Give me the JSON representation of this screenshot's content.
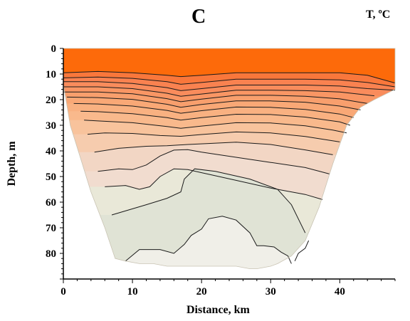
{
  "chart_data": {
    "type": "heatmap",
    "title": "C",
    "unit_label": "T, ºC",
    "xlabel": "Distance, km",
    "ylabel": "Depth, m",
    "xlim": [
      0,
      48
    ],
    "ylim": [
      0,
      90
    ],
    "y_inverted": true,
    "x_ticks": [
      0,
      10,
      20,
      30,
      40
    ],
    "y_ticks": [
      0,
      10,
      20,
      30,
      40,
      50,
      60,
      70,
      80
    ],
    "colors": {
      "surface_mixed_layer": "#fd6a0a",
      "deep_water": "#f7f5ee",
      "contour_line": "#1a1a1a"
    },
    "section_boundary": {
      "x": [
        0,
        48,
        48,
        45,
        43,
        41,
        39,
        37,
        35,
        33,
        31,
        30,
        28,
        27,
        25,
        23,
        21,
        19,
        17,
        15,
        13,
        11,
        9,
        7.5,
        6,
        4,
        2.5,
        1,
        0
      ],
      "depth": [
        0,
        0,
        16,
        20,
        23,
        30,
        45,
        62,
        75,
        81,
        84,
        85,
        86,
        86,
        85,
        85,
        85,
        85,
        85,
        85,
        84,
        84,
        83,
        82,
        70,
        56,
        43,
        30,
        14
      ]
    },
    "thermocline_contours": [
      {
        "x": [
          0,
          5,
          10,
          15,
          17,
          20,
          25,
          30,
          35,
          40,
          44,
          48
        ],
        "depth": [
          9.5,
          9,
          9.5,
          10.5,
          11,
          10.5,
          9.5,
          9.5,
          9.5,
          9.5,
          10.5,
          13.5
        ]
      },
      {
        "x": [
          0,
          5,
          10,
          15,
          17,
          20,
          25,
          30,
          35,
          40,
          44,
          48
        ],
        "depth": [
          11.5,
          11.2,
          11.7,
          13,
          14,
          13.3,
          12,
          12,
          12,
          12.3,
          13.3,
          15
        ]
      },
      {
        "x": [
          0,
          5,
          10,
          15,
          17,
          20,
          25,
          30,
          35,
          40,
          44,
          48
        ],
        "depth": [
          13,
          13,
          13.7,
          15.3,
          16.5,
          15.7,
          14.3,
          14.3,
          14.3,
          14.7,
          15.7,
          16.3
        ]
      },
      {
        "x": [
          0,
          5,
          10,
          15,
          17,
          20,
          25,
          30,
          35,
          40,
          45
        ],
        "depth": [
          15,
          15,
          15.7,
          17.5,
          18.7,
          17.8,
          16.3,
          16.3,
          16.5,
          17,
          18.5
        ]
      },
      {
        "x": [
          0,
          5,
          10,
          15,
          17,
          20,
          25,
          30,
          35,
          40,
          44
        ],
        "depth": [
          17,
          17,
          17.7,
          19.6,
          20.8,
          19.8,
          18.3,
          18.3,
          18.7,
          19.7,
          21.5
        ]
      },
      {
        "x": [
          0.5,
          5,
          10,
          15,
          17,
          20,
          25,
          30,
          35,
          40,
          43
        ],
        "depth": [
          19,
          19.2,
          19.9,
          21.8,
          23,
          21.9,
          20.5,
          20.5,
          21,
          22.5,
          24
        ]
      },
      {
        "x": [
          1.5,
          5,
          10,
          15,
          17,
          20,
          25,
          30,
          35,
          40,
          42
        ],
        "depth": [
          21.5,
          21.7,
          22.5,
          24.2,
          25.3,
          24.3,
          22.9,
          23,
          23.8,
          25.6,
          27
        ]
      },
      {
        "x": [
          2.5,
          5,
          10,
          15,
          17,
          20,
          25,
          30,
          35,
          40,
          41.5
        ],
        "depth": [
          24.5,
          24.7,
          25.5,
          27,
          28,
          27,
          25.7,
          25.8,
          26.8,
          28.7,
          30
        ]
      },
      {
        "x": [
          3,
          5,
          10,
          15,
          17,
          20,
          25,
          30,
          35,
          39,
          41
        ],
        "depth": [
          28,
          28.3,
          29,
          30.5,
          31.2,
          30.3,
          29,
          29.1,
          30.2,
          31.9,
          33
        ]
      },
      {
        "x": [
          3.5,
          6,
          10,
          14,
          17,
          20,
          25,
          30,
          35,
          40
        ],
        "depth": [
          33.5,
          33,
          33.2,
          34,
          34.3,
          33.6,
          32.6,
          33,
          34.4,
          36.5
        ]
      },
      {
        "x": [
          4.5,
          8,
          12,
          15,
          18,
          21,
          25,
          30,
          35,
          39
        ],
        "depth": [
          40.5,
          39,
          38.2,
          38,
          37.5,
          37.1,
          36.6,
          37.5,
          39.6,
          41.5
        ]
      },
      {
        "x": [
          5,
          8,
          10,
          12,
          14,
          16,
          18,
          20,
          25,
          30,
          35,
          38.5
        ],
        "depth": [
          48,
          47,
          47.3,
          45.5,
          42,
          39.7,
          39.5,
          40.5,
          42.5,
          44.5,
          46.5,
          49
        ]
      },
      {
        "x": [
          6,
          9,
          11,
          12.5,
          14,
          16,
          18,
          20,
          25,
          30,
          35,
          37.5
        ],
        "depth": [
          54,
          53.5,
          55,
          54,
          50,
          47,
          47.3,
          48.5,
          51.5,
          54.5,
          57,
          59
        ]
      },
      {
        "x": [
          7,
          12,
          15,
          17,
          17.5,
          19,
          22,
          27,
          31,
          33,
          35
        ],
        "depth": [
          65,
          61,
          58.5,
          56,
          51,
          47,
          48,
          51,
          55,
          61,
          72
        ]
      },
      {
        "x": [
          9,
          11,
          14,
          16,
          17.5,
          18.5,
          20,
          21,
          23,
          25,
          27,
          28,
          29,
          30.5,
          31.5,
          32.5,
          33
        ],
        "depth": [
          83,
          78.5,
          78.5,
          80,
          76.5,
          73,
          70.5,
          66.5,
          65.5,
          67,
          72,
          77,
          77,
          77.5,
          79.5,
          81,
          84
        ]
      },
      {
        "x": [
          33.5,
          34,
          35,
          35.5
        ],
        "depth": [
          83,
          80,
          78,
          75
        ]
      }
    ],
    "temperature_bands": [
      {
        "lower_contour": 0,
        "color": "#f9773b"
      },
      {
        "lower_contour": 1,
        "color": "#f98250"
      },
      {
        "lower_contour": 2,
        "color": "#f98c5c"
      },
      {
        "lower_contour": 3,
        "color": "#f99664"
      },
      {
        "lower_contour": 4,
        "color": "#f89f6d"
      },
      {
        "lower_contour": 5,
        "color": "#f9a876"
      },
      {
        "lower_contour": 6,
        "color": "#f9b181"
      },
      {
        "lower_contour": 7,
        "color": "#f9b98c"
      },
      {
        "lower_contour": 8,
        "color": "#f8c39c"
      },
      {
        "lower_contour": 9,
        "color": "#f6ccae"
      },
      {
        "lower_contour": 10,
        "color": "#f2d6c4"
      },
      {
        "lower_contour": 11,
        "color": "#f1dccf"
      },
      {
        "lower_contour": 12,
        "color": "#e9e8d8"
      },
      {
        "lower_contour": 13,
        "color": "#e0e3d5"
      },
      {
        "lower_contour": 14,
        "color": "#f0efe8"
      }
    ]
  }
}
